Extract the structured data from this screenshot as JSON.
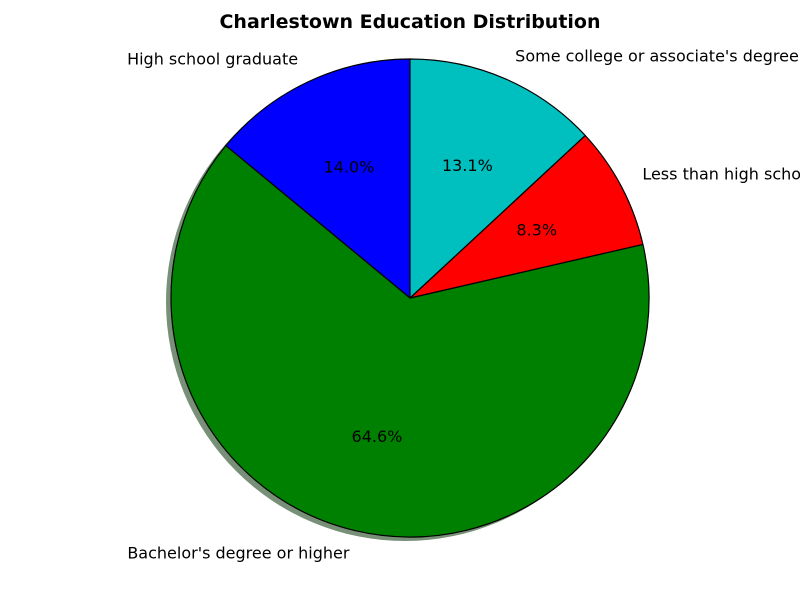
{
  "chart_data": {
    "type": "pie",
    "title": "Charlestown Education Distribution",
    "categories": [
      "High school graduate",
      "Bachelor's degree or higher",
      "Less than high school",
      "Some college or associate's degree"
    ],
    "values": [
      14.0,
      64.6,
      8.3,
      13.1
    ],
    "value_labels": [
      "14.0%",
      "64.6%",
      "8.3%",
      "13.1%"
    ],
    "colors": [
      "#0000ff",
      "#008000",
      "#ff0000",
      "#00bfbf"
    ],
    "start_angle_deg": 90,
    "direction": "counterclockwise",
    "shadow": true,
    "legend": "none"
  }
}
